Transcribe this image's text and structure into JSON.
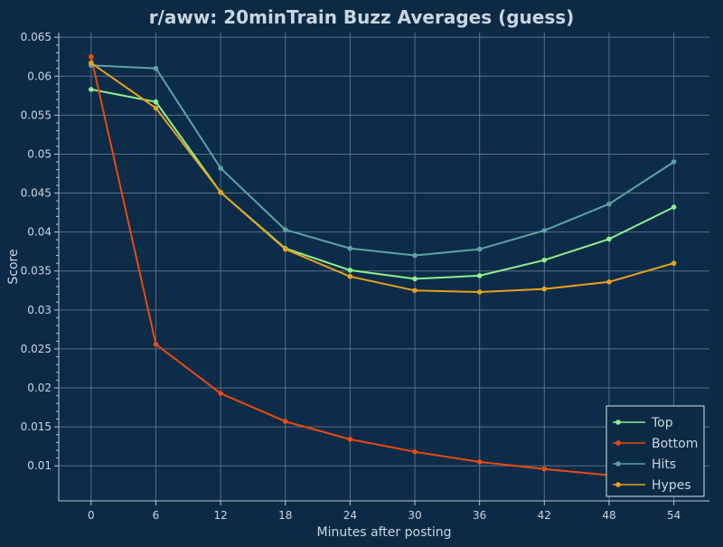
{
  "colors": {
    "background": "#0d2a45",
    "plot_background": "#0c2c49",
    "grid": "#5a6f80",
    "axis": "#b9c7d3",
    "text": "#c9d6e0",
    "legend_border": "#d8e2ea",
    "legend_bg": "#0d2a45"
  },
  "chart_data": {
    "type": "line",
    "title": "r/aww: 20minTrain Buzz Averages (guess)",
    "xlabel": "Minutes after posting",
    "ylabel": "Score",
    "x": [
      0,
      6,
      12,
      18,
      24,
      30,
      36,
      42,
      48,
      54
    ],
    "x_ticks": [
      0,
      6,
      12,
      18,
      24,
      30,
      36,
      42,
      48,
      54
    ],
    "x_tick_labels": [
      "0",
      "6",
      "12",
      "18",
      "24",
      "30",
      "36",
      "42",
      "48",
      "54"
    ],
    "xlim": [
      -3,
      57.3
    ],
    "ylim": [
      0.0055,
      0.0656
    ],
    "y_ticks": [
      0.01,
      0.015,
      0.02,
      0.025,
      0.03,
      0.035,
      0.04,
      0.045,
      0.05,
      0.055,
      0.06,
      0.065
    ],
    "y_tick_labels": [
      "0.01",
      "0.015",
      "0.02",
      "0.025",
      "0.03",
      "0.035",
      "0.04",
      "0.045",
      "0.05",
      "0.055",
      "0.06",
      "0.065"
    ],
    "grid": true,
    "legend_position": "bottom-right",
    "series": [
      {
        "name": "Top",
        "color": "#8ef08e",
        "values": [
          0.0583,
          0.0567,
          0.0451,
          0.0379,
          0.0351,
          0.034,
          0.0344,
          0.0364,
          0.0391,
          0.0432
        ]
      },
      {
        "name": "Bottom",
        "color": "#ea4a10",
        "values": [
          0.0625,
          0.0256,
          0.0193,
          0.0157,
          0.0134,
          0.0118,
          0.0105,
          0.0096,
          0.0088,
          0.008
        ]
      },
      {
        "name": "Hits",
        "color": "#5da2a6",
        "values": [
          0.0614,
          0.061,
          0.0482,
          0.0403,
          0.0379,
          0.037,
          0.0378,
          0.0402,
          0.0436,
          0.049
        ]
      },
      {
        "name": "Hypes",
        "color": "#e8a21c",
        "values": [
          0.0617,
          0.0559,
          0.0451,
          0.0378,
          0.0343,
          0.0325,
          0.0323,
          0.0327,
          0.0336,
          0.036
        ]
      }
    ]
  }
}
